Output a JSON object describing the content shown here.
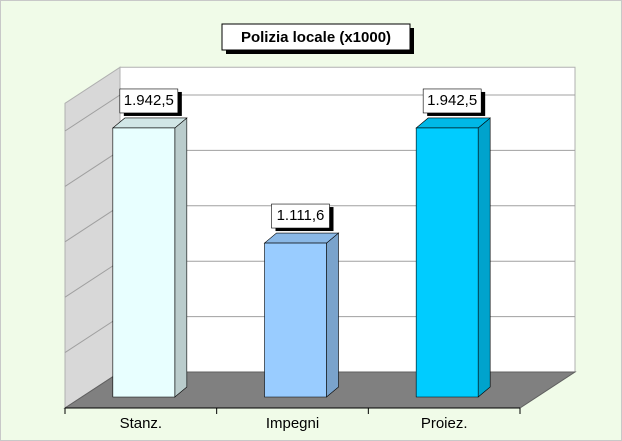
{
  "chart_data": {
    "type": "bar3d",
    "title": "Polizia locale (x1000)",
    "categories": [
      "Stanz.",
      "Impegni",
      "Proiez."
    ],
    "values": [
      1942.5,
      1111.6,
      1942.5
    ],
    "value_labels": [
      "1.942,5",
      "1.111,6",
      "1.942,5"
    ],
    "colors": [
      "#e8ffff",
      "#99ccff",
      "#00ccff"
    ],
    "ylim": [
      0,
      2200
    ],
    "yticks": [
      0,
      400,
      800,
      1200,
      1600,
      2000
    ],
    "grid": true
  }
}
